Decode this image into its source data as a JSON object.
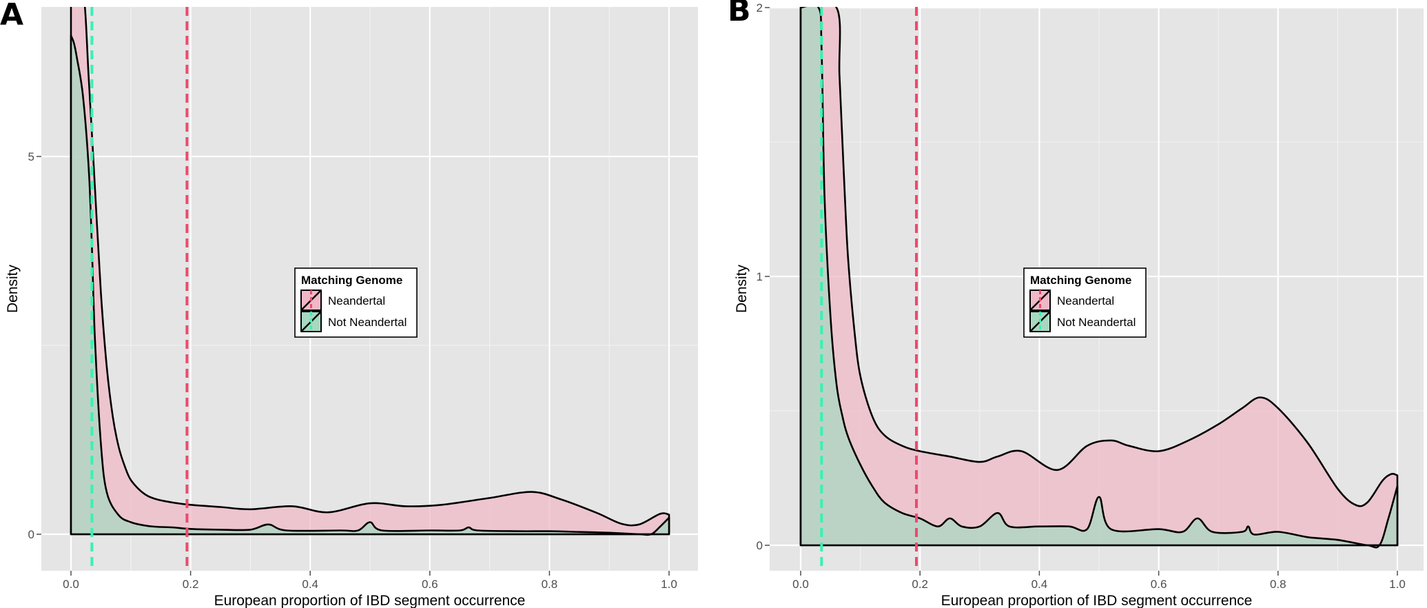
{
  "chart_data": [
    {
      "panel_label": "A",
      "type": "area",
      "xlabel": "European proportion of IBD segment occurrence",
      "ylabel": "Density",
      "xlim": [
        0,
        1
      ],
      "ylim": [
        0,
        7
      ],
      "xticks": [
        "0.0",
        "0.2",
        "0.4",
        "0.6",
        "0.8",
        "1.0"
      ],
      "yticks": [
        "0",
        "5"
      ],
      "legend": {
        "title": "Matching Genome",
        "placement": "center",
        "entries": [
          "Neandertal",
          "Not Neandertal"
        ]
      },
      "vlines": [
        {
          "x": 0.035,
          "series": "Not Neandertal",
          "color": "#37f2b4",
          "style": "dashed"
        },
        {
          "x": 0.194,
          "series": "Neandertal",
          "color": "#ec4a6d",
          "style": "dashed"
        }
      ],
      "series": [
        {
          "name": "Neandertal",
          "fill": "#f0b8c6",
          "x": [
            0,
            0.02,
            0.03,
            0.04,
            0.05,
            0.06,
            0.07,
            0.08,
            0.09,
            0.1,
            0.12,
            0.14,
            0.17,
            0.2,
            0.25,
            0.3,
            0.37,
            0.43,
            0.5,
            0.56,
            0.62,
            0.7,
            0.77,
            0.82,
            0.88,
            0.92,
            0.95,
            0.985,
            1.0
          ],
          "y": [
            7.2,
            7.2,
            6.0,
            4.6,
            3.2,
            2.2,
            1.55,
            1.15,
            0.9,
            0.72,
            0.55,
            0.47,
            0.42,
            0.39,
            0.36,
            0.33,
            0.37,
            0.29,
            0.41,
            0.37,
            0.39,
            0.48,
            0.56,
            0.46,
            0.28,
            0.14,
            0.13,
            0.27,
            0.26
          ]
        },
        {
          "name": "Not Neandertal",
          "fill": "#a8d8c0",
          "x": [
            0,
            0.005,
            0.01,
            0.02,
            0.03,
            0.035,
            0.04,
            0.05,
            0.06,
            0.08,
            0.1,
            0.12,
            0.14,
            0.17,
            0.2,
            0.25,
            0.3,
            0.33,
            0.36,
            0.45,
            0.48,
            0.5,
            0.52,
            0.6,
            0.65,
            0.665,
            0.68,
            0.75,
            0.8,
            0.85,
            0.9,
            0.95,
            0.97,
            0.985,
            1.0
          ],
          "y": [
            6.6,
            6.5,
            6.3,
            5.8,
            4.8,
            3.8,
            2.6,
            1.2,
            0.55,
            0.25,
            0.16,
            0.12,
            0.1,
            0.09,
            0.07,
            0.06,
            0.06,
            0.13,
            0.05,
            0.05,
            0.05,
            0.16,
            0.05,
            0.05,
            0.05,
            0.09,
            0.05,
            0.04,
            0.04,
            0.03,
            0.02,
            0.0,
            0.0,
            0.1,
            0.22
          ]
        }
      ]
    },
    {
      "panel_label": "B",
      "type": "area",
      "xlabel": "European proportion of IBD segment occurrence",
      "ylabel": "Density",
      "xlim": [
        0,
        1
      ],
      "ylim": [
        0,
        2
      ],
      "xticks": [
        "0.0",
        "0.2",
        "0.4",
        "0.6",
        "0.8",
        "1.0"
      ],
      "yticks": [
        "0",
        "1",
        "2"
      ],
      "legend": {
        "title": "Matching Genome",
        "placement": "center",
        "entries": [
          "Neandertal",
          "Not Neandertal"
        ]
      },
      "vlines": [
        {
          "x": 0.035,
          "series": "Not Neandertal",
          "color": "#37f2b4",
          "style": "dashed"
        },
        {
          "x": 0.194,
          "series": "Neandertal",
          "color": "#ec4a6d",
          "style": "dashed"
        }
      ],
      "series": [
        {
          "name": "Neandertal",
          "fill": "#f0b8c6",
          "x": [
            0,
            0.06,
            0.065,
            0.07,
            0.075,
            0.08,
            0.09,
            0.1,
            0.12,
            0.14,
            0.17,
            0.2,
            0.25,
            0.3,
            0.33,
            0.37,
            0.43,
            0.48,
            0.52,
            0.55,
            0.6,
            0.65,
            0.7,
            0.74,
            0.77,
            0.8,
            0.85,
            0.9,
            0.93,
            0.95,
            0.975,
            0.99,
            1.0
          ],
          "y": [
            2.0,
            2.0,
            1.75,
            1.5,
            1.25,
            1.05,
            0.8,
            0.63,
            0.48,
            0.41,
            0.37,
            0.35,
            0.33,
            0.31,
            0.33,
            0.35,
            0.28,
            0.37,
            0.39,
            0.37,
            0.35,
            0.39,
            0.45,
            0.51,
            0.55,
            0.51,
            0.38,
            0.21,
            0.15,
            0.16,
            0.24,
            0.265,
            0.26
          ]
        },
        {
          "name": "Not Neandertal",
          "fill": "#a8d8c0",
          "x": [
            0,
            0.03,
            0.035,
            0.04,
            0.05,
            0.06,
            0.07,
            0.08,
            0.1,
            0.12,
            0.14,
            0.17,
            0.2,
            0.23,
            0.25,
            0.27,
            0.3,
            0.33,
            0.35,
            0.4,
            0.45,
            0.48,
            0.5,
            0.52,
            0.6,
            0.64,
            0.665,
            0.69,
            0.74,
            0.75,
            0.76,
            0.8,
            0.85,
            0.9,
            0.95,
            0.97,
            0.985,
            1.0
          ],
          "y": [
            2.0,
            2.0,
            1.85,
            1.3,
            0.85,
            0.6,
            0.48,
            0.4,
            0.3,
            0.22,
            0.16,
            0.12,
            0.1,
            0.07,
            0.1,
            0.07,
            0.07,
            0.12,
            0.07,
            0.07,
            0.07,
            0.06,
            0.18,
            0.06,
            0.06,
            0.05,
            0.1,
            0.05,
            0.05,
            0.07,
            0.04,
            0.05,
            0.03,
            0.02,
            0.0,
            0.0,
            0.1,
            0.22
          ]
        }
      ]
    }
  ]
}
